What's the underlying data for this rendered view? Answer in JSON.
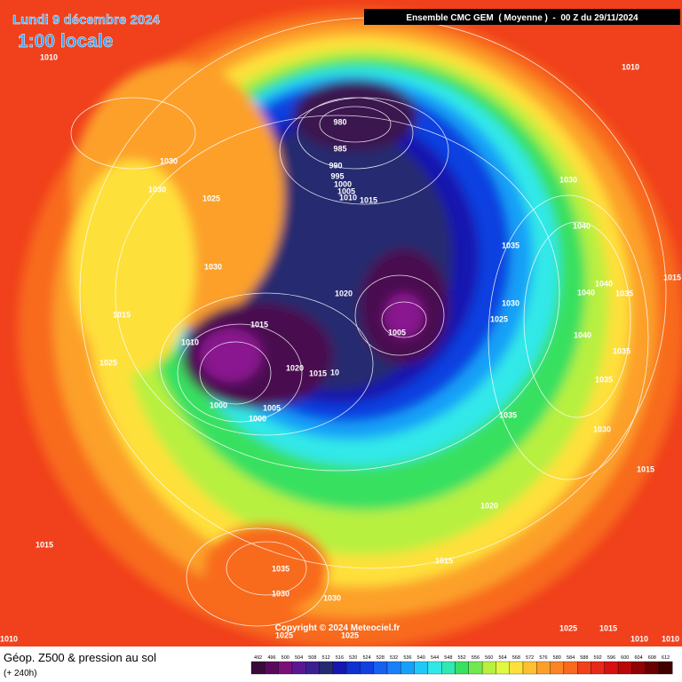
{
  "header": {
    "date": "Lundi 9 décembre 2024",
    "time": "1:00 locale",
    "model": "Ensemble CMC GEM  ( Moyenne )  -  00 Z du 29/11/2024"
  },
  "copyright": "Copyright © 2024 Meteociel.fr",
  "footer": {
    "title": "Géop. Z500 & pression au sol",
    "lead": "(+ 240h)"
  },
  "scale": [
    492,
    496,
    500,
    504,
    508,
    512,
    516,
    520,
    524,
    528,
    532,
    536,
    540,
    544,
    548,
    552,
    556,
    560,
    564,
    568,
    572,
    576,
    580,
    584,
    588,
    592,
    596,
    600,
    604,
    608,
    612
  ],
  "isobars": [
    1010,
    1030,
    1030,
    1025,
    980,
    985,
    990,
    995,
    1000,
    1005,
    1010,
    1015,
    1030,
    1010,
    1040,
    1035,
    1030,
    1020,
    1040,
    1040,
    1035,
    1015,
    1030,
    1025,
    1015,
    1015,
    1005,
    1010,
    1040,
    1035,
    1025,
    1020,
    1015,
    10,
    1035,
    1000,
    1005,
    1000,
    1035,
    1030,
    1015,
    1020,
    1015,
    1035,
    1015,
    1030,
    1030,
    1025,
    1025,
    1010,
    1025,
    1015,
    1010,
    1010
  ]
}
